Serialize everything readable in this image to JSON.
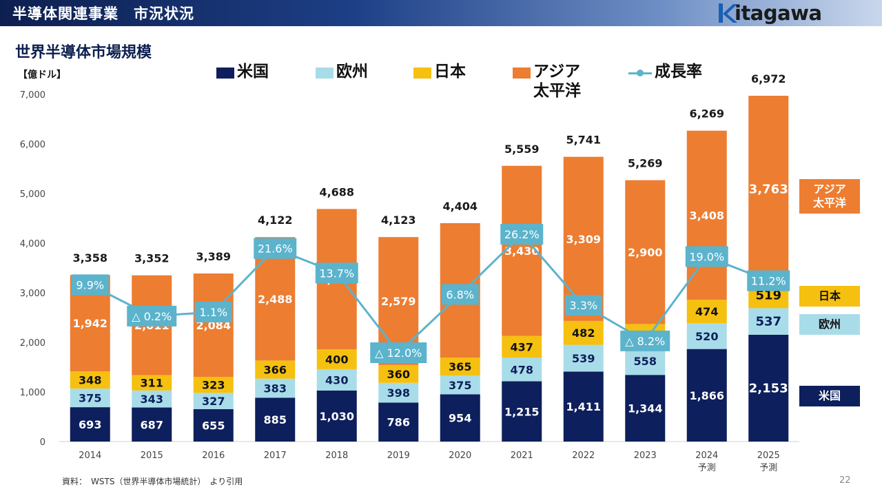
{
  "header": {
    "title": "半導体関連事業　市況状況",
    "logo_letter": "k",
    "logo_text": "itagawa"
  },
  "chart_title": "世界半導体市場規模",
  "unit_label": "【億ドル】",
  "legend": [
    {
      "label": "米国",
      "color": "#0d1f5c"
    },
    {
      "label": "欧州",
      "color": "#a8dce9"
    },
    {
      "label": "日本",
      "color": "#f5c00f"
    },
    {
      "label": "アジア\n太平洋",
      "color": "#ed7d31"
    },
    {
      "label": "成長率",
      "color": "#5cb3cc"
    }
  ],
  "right_labels": {
    "asia": "アジア\n太平洋",
    "japan": "日本",
    "europe": "欧州",
    "us": "米国"
  },
  "source": "資料：　WSTS（世界半導体市場統計）　より引用",
  "page_number": "22",
  "chart_data": {
    "type": "bar",
    "stacked": true,
    "title": "世界半導体市場規模",
    "ylabel": "【億ドル】",
    "ylim": [
      0,
      7000
    ],
    "yticks": [
      0,
      1000,
      2000,
      3000,
      4000,
      5000,
      6000,
      7000
    ],
    "categories": [
      "2014",
      "2015",
      "2016",
      "2017",
      "2018",
      "2019",
      "2020",
      "2021",
      "2022",
      "2023",
      "2024\n予測",
      "2025\n予測"
    ],
    "series": [
      {
        "name": "米国",
        "color": "#0d1f5c",
        "values": [
          693,
          687,
          655,
          885,
          1030,
          786,
          954,
          1215,
          1411,
          1344,
          1866,
          2153
        ]
      },
      {
        "name": "欧州",
        "color": "#a8dce9",
        "values": [
          375,
          343,
          327,
          383,
          430,
          398,
          375,
          478,
          539,
          558,
          520,
          537
        ]
      },
      {
        "name": "日本",
        "color": "#f5c00f",
        "values": [
          348,
          311,
          323,
          366,
          400,
          360,
          365,
          437,
          482,
          468,
          474,
          519
        ]
      },
      {
        "name": "アジア\n太平洋",
        "color": "#ed7d31",
        "values": [
          1942,
          2011,
          2084,
          2488,
          2829,
          2579,
          2710,
          3430,
          3309,
          2900,
          3408,
          3763
        ]
      }
    ],
    "totals": [
      3358,
      3352,
      3389,
      4122,
      4688,
      4123,
      4404,
      5559,
      5741,
      5269,
      6269,
      6972
    ],
    "total_labels": [
      "3,358",
      "3,352",
      "3,389",
      "4,122",
      "4,688",
      "4,123",
      "4,404",
      "5,559",
      "5,741",
      "5,269",
      "6,269",
      "6,972"
    ],
    "growth": {
      "name": "成長率",
      "color": "#5cb3cc",
      "values": [
        9.9,
        -0.2,
        1.1,
        21.6,
        13.7,
        -12.0,
        6.8,
        26.2,
        3.3,
        -8.2,
        19.0,
        11.2
      ],
      "labels": [
        "9.9%",
        "△ 0.2%",
        "1.1%",
        "21.6%",
        "13.7%",
        "△ 12.0%",
        "6.8%",
        "26.2%",
        "3.3%",
        "△ 8.2%",
        "19.0%",
        "11.2%"
      ]
    }
  }
}
